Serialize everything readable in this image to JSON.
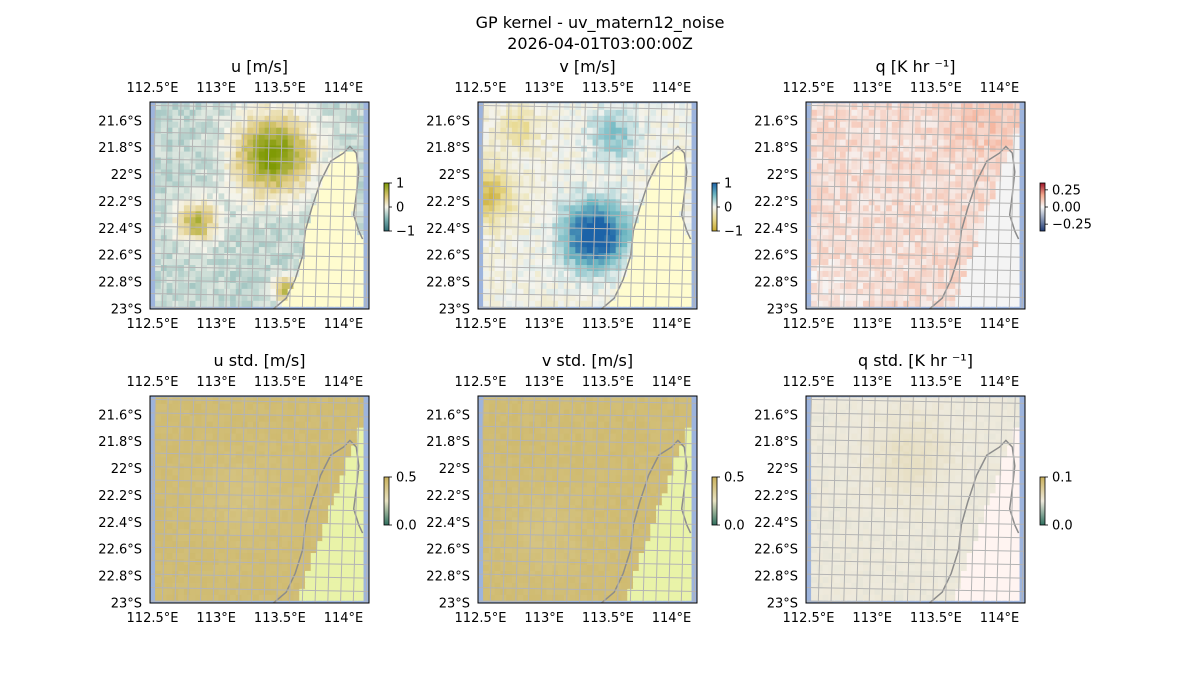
{
  "figure": {
    "title_line1": "GP kernel - uv_matern12_noise",
    "title_line2": "2026-04-01T03:00:00Z"
  },
  "colors": {
    "ocean_edge": "#9db4dd",
    "land": "#fffccf",
    "land_std": "#e9f3a8",
    "land_q": "#f4f4f4",
    "land_q_std": "#fff4f1",
    "coastline": "#8c8c8c",
    "grid": "#b4b4b4"
  },
  "chart_data": [
    {
      "type": "heatmap",
      "id": "u",
      "title": "u [m/s]",
      "colormap": "PuOr_like",
      "clim": [
        -1,
        1
      ],
      "colorbar_ticks": [
        "1",
        "0",
        "−1"
      ],
      "colorbar_tick_values": [
        1,
        0,
        -1
      ],
      "field": {
        "base": -0.22,
        "blobs": [
          [
            113.45,
            -21.85,
            1.25,
            0.3,
            0.3
          ],
          [
            112.85,
            -22.35,
            0.9,
            0.15,
            0.15
          ],
          [
            113.55,
            -22.85,
            0.8,
            0.1,
            0.1
          ]
        ]
      },
      "xlabel": "",
      "ylabel": "",
      "xlim": [
        112.48,
        114.2
      ],
      "ylim": [
        -23.0,
        -21.46
      ],
      "xticks": [
        "112.5°E",
        "113°E",
        "113.5°E",
        "114°E"
      ],
      "xtick_values": [
        112.5,
        113.0,
        113.5,
        114.0
      ],
      "yticks": [
        "21.6°S",
        "21.8°S",
        "22°S",
        "22.2°S",
        "22.4°S",
        "22.6°S",
        "22.8°S",
        "23°S"
      ],
      "ytick_values": [
        -21.6,
        -21.8,
        -22.0,
        -22.2,
        -22.4,
        -22.6,
        -22.8,
        -23.0
      ]
    },
    {
      "type": "heatmap",
      "id": "v",
      "title": "v [m/s]",
      "colormap": "BrBG_like",
      "clim": [
        -1,
        1
      ],
      "colorbar_ticks": [
        "1",
        "0",
        "−1"
      ],
      "colorbar_tick_values": [
        1,
        0,
        -1
      ],
      "field": {
        "base": -0.05,
        "blobs": [
          [
            113.4,
            -22.45,
            1.25,
            0.25,
            0.25
          ],
          [
            113.55,
            -21.7,
            0.45,
            0.2,
            0.2
          ],
          [
            112.55,
            -22.15,
            -0.75,
            0.2,
            0.2
          ],
          [
            112.8,
            -21.65,
            -0.4,
            0.15,
            0.15
          ]
        ]
      },
      "xlabel": "",
      "ylabel": "",
      "xlim": [
        112.48,
        114.2
      ],
      "ylim": [
        -23.0,
        -21.46
      ],
      "xticks": [
        "112.5°E",
        "113°E",
        "113.5°E",
        "114°E"
      ],
      "xtick_values": [
        112.5,
        113.0,
        113.5,
        114.0
      ],
      "yticks": [
        "21.6°S",
        "21.8°S",
        "22°S",
        "22.2°S",
        "22.4°S",
        "22.6°S",
        "22.8°S",
        "23°S"
      ],
      "ytick_values": [
        -21.6,
        -21.8,
        -22.0,
        -22.2,
        -22.4,
        -22.6,
        -22.8,
        -23.0
      ]
    },
    {
      "type": "heatmap",
      "id": "q",
      "title": "q [K hr ⁻¹]",
      "colormap": "RdBu_r_like",
      "clim": [
        -0.35,
        0.35
      ],
      "colorbar_ticks": [
        "0.25",
        "0.00",
        "−0.25"
      ],
      "colorbar_tick_values": [
        0.25,
        0.0,
        -0.25
      ],
      "field": {
        "base": 0.06,
        "blobs": [
          [
            113.95,
            -21.6,
            0.05,
            0.3,
            0.3
          ],
          [
            112.6,
            -22.9,
            -0.03,
            0.3,
            0.3
          ]
        ]
      },
      "xlabel": "",
      "ylabel": "",
      "xlim": [
        112.48,
        114.2
      ],
      "ylim": [
        -23.0,
        -21.46
      ],
      "xticks": [
        "112.5°E",
        "113°E",
        "113.5°E",
        "114°E"
      ],
      "xtick_values": [
        112.5,
        113.0,
        113.5,
        114.0
      ],
      "yticks": [
        "21.6°S",
        "21.8°S",
        "22°S",
        "22.2°S",
        "22.4°S",
        "22.6°S",
        "22.8°S",
        "23°S"
      ],
      "ytick_values": [
        -21.6,
        -21.8,
        -22.0,
        -22.2,
        -22.4,
        -22.6,
        -22.8,
        -23.0
      ]
    },
    {
      "type": "heatmap",
      "id": "u_std",
      "title": "u std. [m/s]",
      "colormap": "BrBG_std_like",
      "clim": [
        0,
        0.5
      ],
      "colorbar_ticks": [
        "0.5",
        "0.0"
      ],
      "colorbar_tick_values": [
        0.5,
        0.0
      ],
      "field": {
        "base": 0.44,
        "blobs": [
          [
            113.2,
            -22.2,
            -0.03,
            0.3,
            0.3
          ]
        ]
      },
      "xlabel": "",
      "ylabel": "",
      "xlim": [
        112.48,
        114.2
      ],
      "ylim": [
        -23.0,
        -21.46
      ],
      "xticks": [
        "112.5°E",
        "113°E",
        "113.5°E",
        "114°E"
      ],
      "xtick_values": [
        112.5,
        113.0,
        113.5,
        114.0
      ],
      "yticks": [
        "21.6°S",
        "21.8°S",
        "22°S",
        "22.2°S",
        "22.4°S",
        "22.6°S",
        "22.8°S",
        "23°S"
      ],
      "ytick_values": [
        -21.6,
        -21.8,
        -22.0,
        -22.2,
        -22.4,
        -22.6,
        -22.8,
        -23.0
      ]
    },
    {
      "type": "heatmap",
      "id": "v_std",
      "title": "v std. [m/s]",
      "colormap": "BrBG_std_like",
      "clim": [
        0,
        0.5
      ],
      "colorbar_ticks": [
        "0.5",
        "0.0"
      ],
      "colorbar_tick_values": [
        0.5,
        0.0
      ],
      "field": {
        "base": 0.44,
        "blobs": [
          [
            113.0,
            -22.5,
            -0.03,
            0.3,
            0.3
          ]
        ]
      },
      "xlabel": "",
      "ylabel": "",
      "xlim": [
        112.48,
        114.2
      ],
      "ylim": [
        -23.0,
        -21.46
      ],
      "xticks": [
        "112.5°E",
        "113°E",
        "113.5°E",
        "114°E"
      ],
      "xtick_values": [
        112.5,
        113.0,
        113.5,
        114.0
      ],
      "yticks": [
        "21.6°S",
        "21.8°S",
        "22°S",
        "22.2°S",
        "22.4°S",
        "22.6°S",
        "22.8°S",
        "23°S"
      ],
      "ytick_values": [
        -21.6,
        -21.8,
        -22.0,
        -22.2,
        -22.4,
        -22.6,
        -22.8,
        -23.0
      ]
    },
    {
      "type": "heatmap",
      "id": "q_std",
      "title": "q std. [K hr ⁻¹]",
      "colormap": "q_std_like",
      "clim": [
        0,
        0.1
      ],
      "colorbar_ticks": [
        "0.1",
        "0.0"
      ],
      "colorbar_tick_values": [
        0.1,
        0.0
      ],
      "field": {
        "base": 0.05,
        "blobs": [
          [
            113.3,
            -21.9,
            0.01,
            0.3,
            0.3
          ]
        ]
      },
      "xlabel": "",
      "ylabel": "",
      "xlim": [
        112.48,
        114.2
      ],
      "ylim": [
        -23.0,
        -21.46
      ],
      "xticks": [
        "112.5°E",
        "113°E",
        "113.5°E",
        "114°E"
      ],
      "xtick_values": [
        112.5,
        113.0,
        113.5,
        114.0
      ],
      "yticks": [
        "21.6°S",
        "21.8°S",
        "22°S",
        "22.2°S",
        "22.4°S",
        "22.6°S",
        "22.8°S",
        "23°S"
      ],
      "ytick_values": [
        -21.6,
        -21.8,
        -22.0,
        -22.2,
        -22.4,
        -22.6,
        -22.8,
        -23.0
      ]
    }
  ]
}
